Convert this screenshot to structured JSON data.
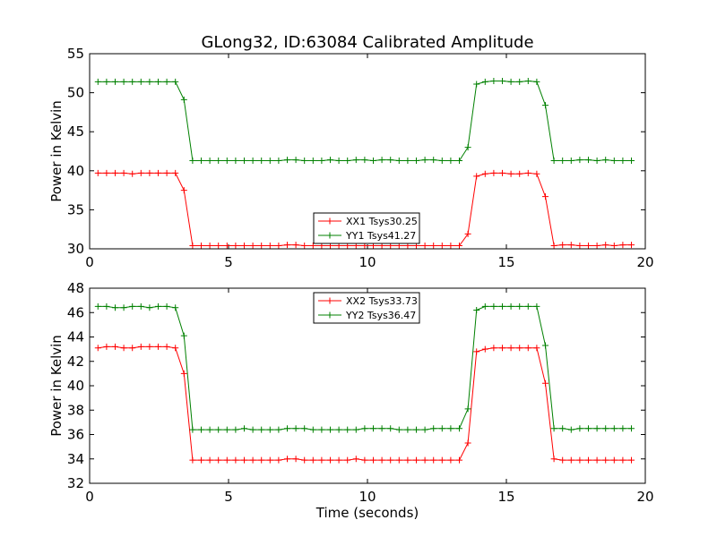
{
  "chart_data": [
    {
      "type": "line",
      "title": "GLong32, ID:63084 Calibrated Amplitude",
      "xlabel": "",
      "ylabel": "Power in Kelvin",
      "xlim": [
        0,
        20
      ],
      "ylim": [
        30,
        55
      ],
      "xticks": [
        "0",
        "5",
        "10",
        "15",
        "20"
      ],
      "yticks": [
        "30",
        "35",
        "40",
        "45",
        "50",
        "55"
      ],
      "legend_position": "lower-center",
      "series": [
        {
          "name": "XX1 Tsys30.25",
          "color": "#ff0000",
          "values": [
            39.7,
            39.7,
            39.7,
            39.7,
            39.6,
            39.7,
            39.7,
            39.7,
            39.7,
            39.7,
            37.5,
            30.4,
            30.4,
            30.4,
            30.4,
            30.4,
            30.4,
            30.4,
            30.4,
            30.4,
            30.4,
            30.4,
            30.5,
            30.5,
            30.4,
            30.4,
            30.4,
            30.4,
            30.4,
            30.4,
            30.4,
            30.4,
            30.4,
            30.4,
            30.4,
            30.4,
            30.4,
            30.4,
            30.4,
            30.4,
            30.4,
            30.4,
            30.4,
            31.9,
            39.3,
            39.6,
            39.7,
            39.7,
            39.6,
            39.6,
            39.7,
            39.6,
            36.7,
            30.4,
            30.5,
            30.5,
            30.4,
            30.4,
            30.4,
            30.5,
            30.4,
            30.5,
            30.5
          ]
        },
        {
          "name": "YY1 Tsys41.27",
          "color": "#008000",
          "values": [
            51.4,
            51.4,
            51.4,
            51.4,
            51.4,
            51.4,
            51.4,
            51.4,
            51.4,
            51.4,
            49.1,
            41.3,
            41.3,
            41.3,
            41.3,
            41.3,
            41.3,
            41.3,
            41.3,
            41.3,
            41.3,
            41.3,
            41.4,
            41.4,
            41.3,
            41.3,
            41.3,
            41.4,
            41.3,
            41.3,
            41.4,
            41.4,
            41.3,
            41.4,
            41.4,
            41.3,
            41.3,
            41.3,
            41.4,
            41.4,
            41.3,
            41.3,
            41.3,
            43.0,
            51.1,
            51.4,
            51.5,
            51.5,
            51.4,
            51.4,
            51.5,
            51.4,
            48.4,
            41.3,
            41.3,
            41.3,
            41.4,
            41.4,
            41.3,
            41.4,
            41.3,
            41.3,
            41.3
          ]
        }
      ]
    },
    {
      "type": "line",
      "title": "",
      "xlabel": "Time (seconds)",
      "ylabel": "Power in Kelvin",
      "xlim": [
        0,
        20
      ],
      "ylim": [
        32,
        48
      ],
      "xticks": [
        "0",
        "5",
        "10",
        "15",
        "20"
      ],
      "yticks": [
        "32",
        "34",
        "36",
        "38",
        "40",
        "42",
        "44",
        "46",
        "48"
      ],
      "legend_position": "upper-center",
      "series": [
        {
          "name": "XX2 Tsys33.73",
          "color": "#ff0000",
          "values": [
            43.1,
            43.2,
            43.2,
            43.1,
            43.1,
            43.2,
            43.2,
            43.2,
            43.2,
            43.1,
            41.0,
            33.9,
            33.9,
            33.9,
            33.9,
            33.9,
            33.9,
            33.9,
            33.9,
            33.9,
            33.9,
            33.9,
            34.0,
            34.0,
            33.9,
            33.9,
            33.9,
            33.9,
            33.9,
            33.9,
            34.0,
            33.9,
            33.9,
            33.9,
            33.9,
            33.9,
            33.9,
            33.9,
            33.9,
            33.9,
            33.9,
            33.9,
            33.9,
            35.3,
            42.8,
            43.0,
            43.1,
            43.1,
            43.1,
            43.1,
            43.1,
            43.1,
            40.2,
            34.0,
            33.9,
            33.9,
            33.9,
            33.9,
            33.9,
            33.9,
            33.9,
            33.9,
            33.9
          ]
        },
        {
          "name": "YY2 Tsys36.47",
          "color": "#008000",
          "values": [
            46.5,
            46.5,
            46.4,
            46.4,
            46.5,
            46.5,
            46.4,
            46.5,
            46.5,
            46.4,
            44.1,
            36.4,
            36.4,
            36.4,
            36.4,
            36.4,
            36.4,
            36.5,
            36.4,
            36.4,
            36.4,
            36.4,
            36.5,
            36.5,
            36.5,
            36.4,
            36.4,
            36.4,
            36.4,
            36.4,
            36.4,
            36.5,
            36.5,
            36.5,
            36.5,
            36.4,
            36.4,
            36.4,
            36.4,
            36.5,
            36.5,
            36.5,
            36.5,
            38.1,
            46.2,
            46.5,
            46.5,
            46.5,
            46.5,
            46.5,
            46.5,
            46.5,
            43.3,
            36.5,
            36.5,
            36.4,
            36.5,
            36.5,
            36.5,
            36.5,
            36.5,
            36.5,
            36.5
          ]
        }
      ]
    }
  ]
}
